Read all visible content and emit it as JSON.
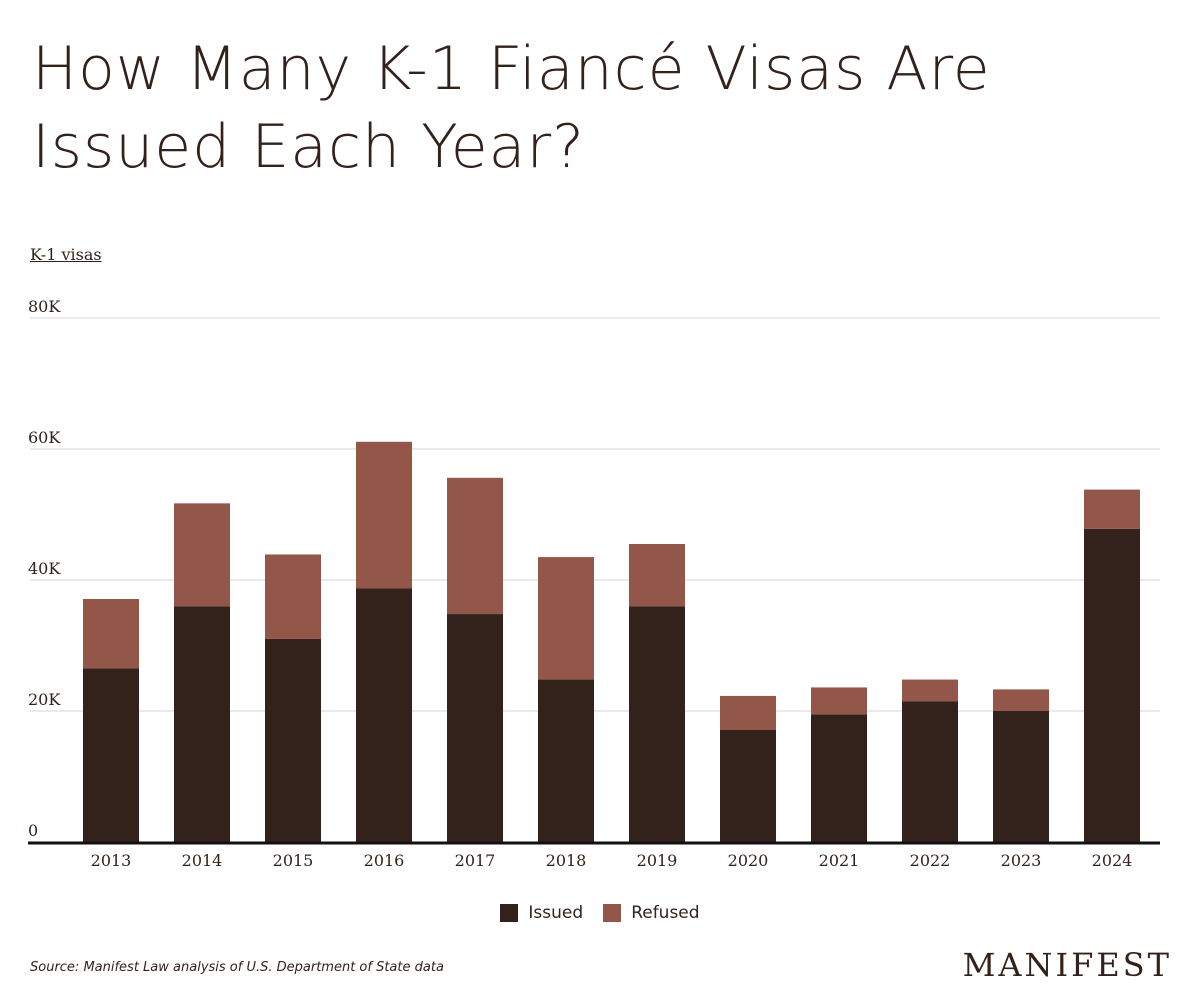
{
  "title": "How Many K-1 Fiancé Visas Are Issued Each Year?",
  "unit_label": "K-1 visas",
  "source": "Source: Manifest Law analysis of U.S. Department of State data",
  "brand": "MANIFEST",
  "colors": {
    "issued": "#33221c",
    "refused": "#93574a",
    "grid": "#dddddd",
    "axis": "#111111",
    "text": "#33221c"
  },
  "legend": [
    {
      "name": "Issued",
      "color": "#33221c"
    },
    {
      "name": "Refused",
      "color": "#93574a"
    }
  ],
  "chart_data": {
    "type": "bar",
    "stacked": true,
    "categories": [
      "2013",
      "2014",
      "2015",
      "2016",
      "2017",
      "2018",
      "2019",
      "2020",
      "2021",
      "2022",
      "2023",
      "2024"
    ],
    "series": [
      {
        "name": "Issued",
        "values": [
          26500,
          36000,
          31000,
          38700,
          34800,
          24800,
          36000,
          17100,
          19500,
          21500,
          20000,
          47800
        ]
      },
      {
        "name": "Refused",
        "values": [
          10600,
          15700,
          12900,
          22400,
          20800,
          18700,
          9500,
          5200,
          4100,
          3300,
          3300,
          6000
        ]
      }
    ],
    "ylim": [
      0,
      80000
    ],
    "yticks": [
      0,
      20000,
      40000,
      60000,
      80000
    ],
    "ytick_labels": [
      "0",
      "20K",
      "40K",
      "60K",
      "80K"
    ],
    "ylabel": "K-1 visas",
    "grid": true,
    "legend_position": "bottom-center"
  }
}
